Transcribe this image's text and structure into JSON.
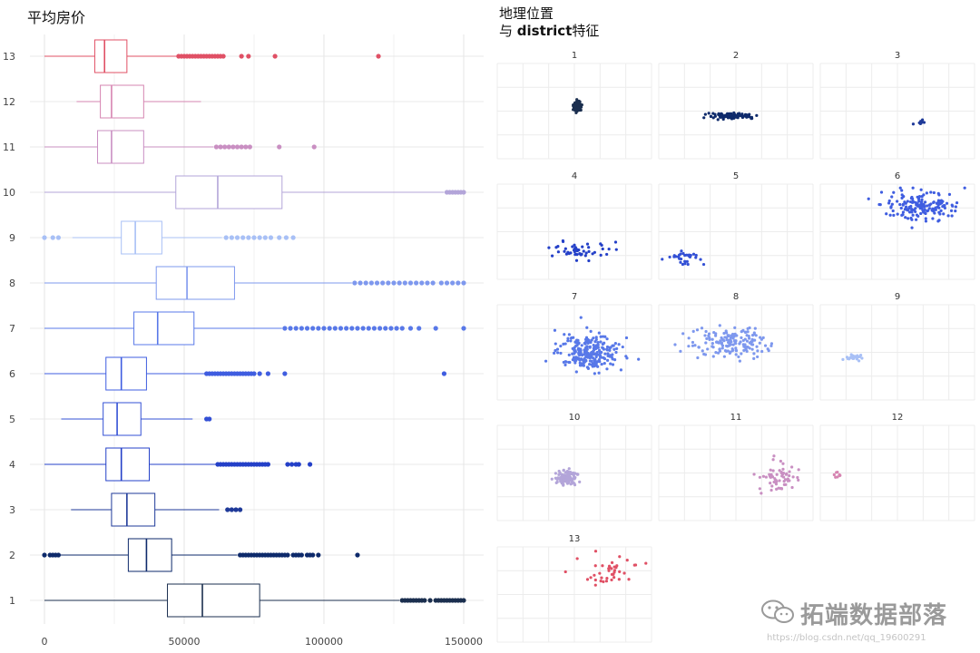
{
  "titles": {
    "left": "平均房价",
    "right_line1": "地理位置",
    "right_line2_prefix": "与 ",
    "right_line2_bold": "district",
    "right_line2_suffix": "特征"
  },
  "watermark": {
    "text": "拓端数据部落",
    "url": "https://blog.csdn.net/qq_19600291"
  },
  "chart_data": [
    {
      "type": "boxplot",
      "title": "平均房价",
      "orientation": "horizontal",
      "xlim": [
        0,
        150000
      ],
      "x_ticks": [
        0,
        50000,
        100000,
        150000
      ],
      "x_tick_labels": [
        "0",
        "50000",
        "100000",
        "150000"
      ],
      "grid": true,
      "categories": [
        "1",
        "2",
        "3",
        "4",
        "5",
        "6",
        "7",
        "8",
        "9",
        "10",
        "11",
        "12",
        "13"
      ],
      "colors": [
        "#1b2f4f",
        "#0e2a6b",
        "#1f3a99",
        "#2440c8",
        "#3350d5",
        "#3f5de0",
        "#5878e8",
        "#7e98ee",
        "#a8c0f6",
        "#b3a5d9",
        "#c98fc2",
        "#d684b1",
        "#e05065"
      ],
      "boxes": [
        {
          "cat": "1",
          "min": 0,
          "q1": 44000,
          "median": 56500,
          "q3": 77000,
          "max": 127000,
          "outliers": [
            128000,
            129000,
            130000,
            131000,
            132000,
            133000,
            134000,
            135000,
            136000,
            138000,
            140000,
            141000,
            142000,
            143000,
            144000,
            145000,
            146000,
            147000,
            148000,
            149000,
            150000
          ]
        },
        {
          "cat": "2",
          "min": 5000,
          "q1": 30000,
          "median": 36500,
          "q3": 45500,
          "max": 69000,
          "outliers": [
            0,
            2000,
            3000,
            4000,
            5000,
            70000,
            71000,
            72000,
            73000,
            74000,
            75000,
            76000,
            77000,
            78000,
            79000,
            80000,
            81000,
            82000,
            83000,
            84000,
            85000,
            86000,
            87000,
            89000,
            90000,
            91000,
            92000,
            94000,
            95000,
            96000,
            98000,
            112000
          ]
        },
        {
          "cat": "3",
          "min": 9500,
          "q1": 24000,
          "median": 29500,
          "q3": 39500,
          "max": 62500,
          "outliers": [
            65500,
            67000,
            68500,
            70000
          ]
        },
        {
          "cat": "4",
          "min": 0,
          "q1": 22000,
          "median": 27500,
          "q3": 37500,
          "max": 61500,
          "outliers": [
            62000,
            63000,
            64000,
            65000,
            66000,
            67000,
            68000,
            69000,
            70000,
            71000,
            72000,
            73000,
            74000,
            75000,
            76000,
            77000,
            78000,
            79000,
            80000,
            87000,
            88500,
            90000,
            91000,
            95000
          ]
        },
        {
          "cat": "5",
          "min": 6000,
          "q1": 21000,
          "median": 26000,
          "q3": 34500,
          "max": 53000,
          "outliers": [
            58000,
            59000
          ]
        },
        {
          "cat": "6",
          "min": 0,
          "q1": 22000,
          "median": 27500,
          "q3": 36500,
          "max": 57500,
          "outliers": [
            58000,
            59000,
            60000,
            61000,
            62000,
            63000,
            64000,
            65000,
            66000,
            67000,
            68000,
            69000,
            70000,
            71000,
            72000,
            73000,
            74000,
            75000,
            77000,
            80000,
            86000,
            143000
          ]
        },
        {
          "cat": "7",
          "min": 0,
          "q1": 32000,
          "median": 40500,
          "q3": 53500,
          "max": 85000,
          "outliers": [
            86000,
            88000,
            90000,
            92000,
            94000,
            96000,
            98000,
            100000,
            102000,
            104000,
            106000,
            108000,
            110000,
            112000,
            114000,
            116000,
            118000,
            120000,
            122000,
            124000,
            126000,
            128000,
            131000,
            134000,
            140000,
            150000
          ]
        },
        {
          "cat": "8",
          "min": 0,
          "q1": 40000,
          "median": 51000,
          "q3": 68000,
          "max": 110000,
          "outliers": [
            111000,
            113000,
            115000,
            117000,
            119000,
            121000,
            123000,
            125000,
            127000,
            129000,
            131000,
            133000,
            135000,
            137000,
            139000,
            142000,
            144000,
            146000,
            148000,
            150000
          ]
        },
        {
          "cat": "9",
          "min": 10000,
          "q1": 27500,
          "median": 32500,
          "q3": 42000,
          "max": 63500,
          "outliers": [
            0,
            3000,
            5000,
            65000,
            67000,
            69000,
            71000,
            73000,
            75000,
            77000,
            79000,
            81000,
            84000,
            86500,
            89000
          ]
        },
        {
          "cat": "10",
          "min": 0,
          "q1": 47000,
          "median": 62000,
          "q3": 85000,
          "max": 143000,
          "outliers": [
            144000,
            145000,
            146000,
            147000,
            148000,
            149000,
            150000
          ]
        },
        {
          "cat": "11",
          "min": 0,
          "q1": 19000,
          "median": 24000,
          "q3": 35500,
          "max": 60500,
          "outliers": [
            61500,
            63000,
            64500,
            66000,
            67500,
            69000,
            70500,
            72000,
            73500,
            84000,
            96500
          ]
        },
        {
          "cat": "12",
          "min": 11500,
          "q1": 20000,
          "median": 24000,
          "q3": 35500,
          "max": 56000,
          "outliers": []
        },
        {
          "cat": "13",
          "min": 0,
          "q1": 18000,
          "median": 21500,
          "q3": 29500,
          "max": 47500,
          "outliers": [
            48000,
            49000,
            50000,
            51000,
            52000,
            53000,
            54000,
            55000,
            56000,
            57000,
            58000,
            59000,
            60000,
            61000,
            62000,
            63000,
            64000,
            70500,
            73000,
            82500,
            119500
          ]
        }
      ]
    },
    {
      "type": "scatter",
      "title": "地理位置 与 district特征",
      "facets": [
        "1",
        "2",
        "3",
        "4",
        "5",
        "6",
        "7",
        "8",
        "9",
        "10",
        "11",
        "12",
        "13"
      ],
      "point_clusters": [
        {
          "facet": "1",
          "color": "#1b2f4f",
          "center": [
            0.52,
            0.45
          ],
          "spread": [
            0.03,
            0.06
          ],
          "count": 80
        },
        {
          "facet": "2",
          "color": "#0e2a6b",
          "center": [
            0.48,
            0.55
          ],
          "spread": [
            0.18,
            0.04
          ],
          "count": 90
        },
        {
          "facet": "3",
          "color": "#1f3a99",
          "center": [
            0.65,
            0.62
          ],
          "spread": [
            0.03,
            0.03
          ],
          "count": 10
        },
        {
          "facet": "4",
          "color": "#2440c8",
          "center": [
            0.52,
            0.7
          ],
          "spread": [
            0.2,
            0.1
          ],
          "count": 50
        },
        {
          "facet": "5",
          "color": "#3350d5",
          "center": [
            0.18,
            0.78
          ],
          "spread": [
            0.12,
            0.08
          ],
          "count": 30
        },
        {
          "facet": "6",
          "color": "#3f5de0",
          "center": [
            0.65,
            0.22
          ],
          "spread": [
            0.28,
            0.16
          ],
          "count": 160
        },
        {
          "facet": "7",
          "color": "#5878e8",
          "center": [
            0.6,
            0.5
          ],
          "spread": [
            0.22,
            0.2
          ],
          "count": 260
        },
        {
          "facet": "8",
          "color": "#7e98ee",
          "center": [
            0.45,
            0.4
          ],
          "spread": [
            0.26,
            0.18
          ],
          "count": 160
        },
        {
          "facet": "9",
          "color": "#a8c0f6",
          "center": [
            0.22,
            0.55
          ],
          "spread": [
            0.08,
            0.04
          ],
          "count": 25
        },
        {
          "facet": "10",
          "color": "#b3a5d9",
          "center": [
            0.45,
            0.55
          ],
          "spread": [
            0.07,
            0.08
          ],
          "count": 120
        },
        {
          "facet": "11",
          "color": "#c98fc2",
          "center": [
            0.78,
            0.55
          ],
          "spread": [
            0.16,
            0.16
          ],
          "count": 60
        },
        {
          "facet": "12",
          "color": "#d684b1",
          "center": [
            0.12,
            0.52
          ],
          "spread": [
            0.04,
            0.04
          ],
          "count": 8
        },
        {
          "facet": "13",
          "color": "#e05065",
          "center": [
            0.75,
            0.25
          ],
          "spread": [
            0.18,
            0.16
          ],
          "count": 40
        }
      ]
    }
  ]
}
